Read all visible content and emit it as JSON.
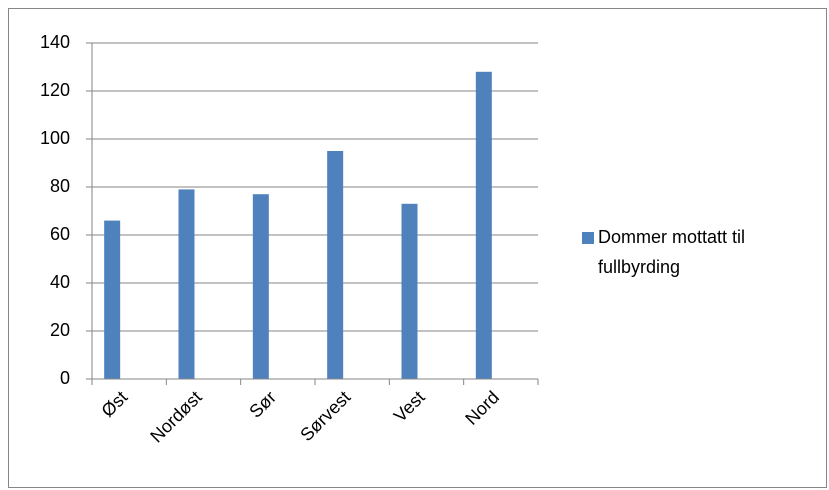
{
  "chart_data": {
    "type": "bar",
    "categories": [
      "Øst",
      "Nordøst",
      "Sør",
      "Sørvest",
      "Vest",
      "Nord"
    ],
    "series": [
      {
        "name": "Dommer mottatt til fullbyrding",
        "color": "#4f81bd",
        "values": [
          66,
          79,
          77,
          95,
          73,
          128
        ]
      }
    ],
    "ylim": [
      0,
      140
    ],
    "yticks": [
      0,
      20,
      40,
      60,
      80,
      100,
      120,
      140
    ],
    "grid": true,
    "legend": "right"
  }
}
